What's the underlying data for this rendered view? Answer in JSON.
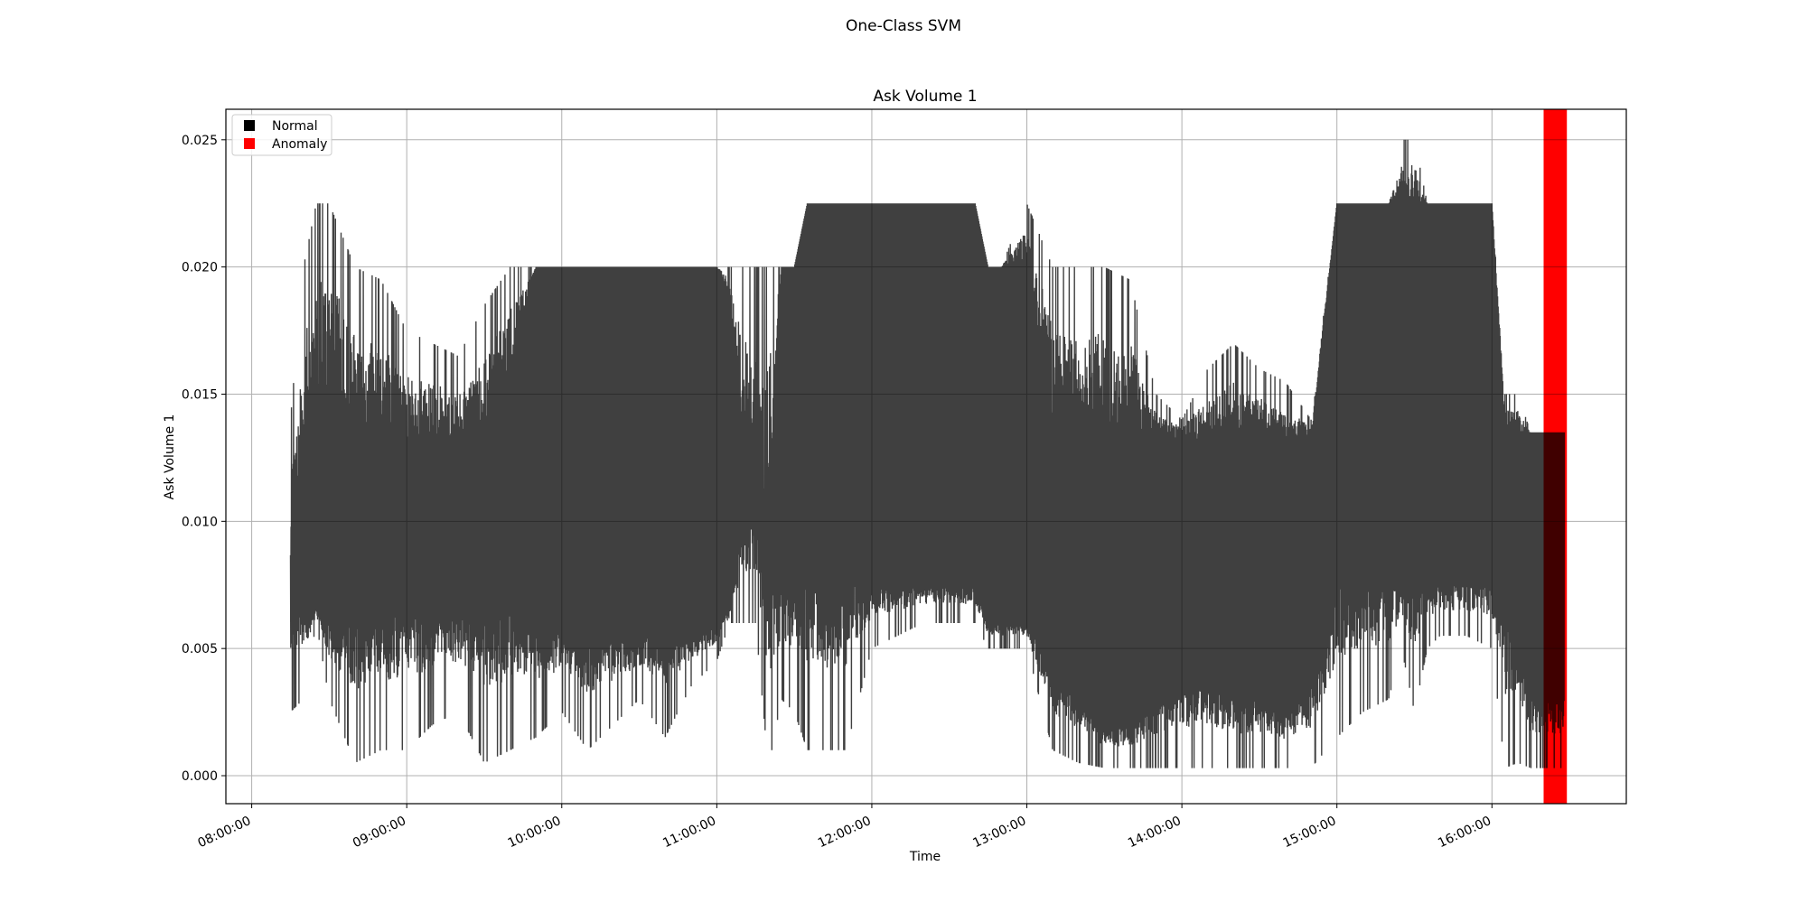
{
  "figure": {
    "suptitle": "One-Class SVM"
  },
  "chart_data": {
    "type": "line",
    "title": "Ask Volume 1",
    "xlabel": "Time",
    "ylabel": "Ask Volume 1",
    "x_range": [
      "07:50:00",
      "16:52:00"
    ],
    "ylim": [
      -0.0011,
      0.0262
    ],
    "xticks": [
      "08:00:00",
      "09:00:00",
      "10:00:00",
      "11:00:00",
      "12:00:00",
      "13:00:00",
      "14:00:00",
      "15:00:00",
      "16:00:00"
    ],
    "yticks": [
      "0.000",
      "0.005",
      "0.010",
      "0.015",
      "0.020",
      "0.025"
    ],
    "grid": true,
    "legend": {
      "placement": "top-left",
      "entries": [
        {
          "label": "Normal",
          "color": "#000000"
        },
        {
          "label": "Anomaly",
          "color": "#ff0000"
        }
      ]
    },
    "series_color": "#000000",
    "series_alpha": 0.75,
    "anomaly_color": "#ff0000",
    "anomaly_regions": [
      {
        "start": "16:20:00",
        "end": "16:29:00"
      }
    ],
    "envelope": {
      "description_free": true,
      "x": [
        "08:15:00",
        "08:20:00",
        "08:25:00",
        "08:30:00",
        "08:40:00",
        "08:50:00",
        "09:00:00",
        "09:10:00",
        "09:20:00",
        "09:30:00",
        "09:40:00",
        "09:50:00",
        "10:00:00",
        "10:10:00",
        "10:20:00",
        "10:30:00",
        "10:40:00",
        "10:50:00",
        "11:00:00",
        "11:05:00",
        "11:10:00",
        "11:15:00",
        "11:20:00",
        "11:25:00",
        "11:30:00",
        "11:35:00",
        "11:40:00",
        "11:50:00",
        "12:00:00",
        "12:10:00",
        "12:20:00",
        "12:30:00",
        "12:40:00",
        "12:45:00",
        "12:50:00",
        "13:00:00",
        "13:10:00",
        "13:20:00",
        "13:30:00",
        "13:40:00",
        "13:50:00",
        "14:00:00",
        "14:10:00",
        "14:20:00",
        "14:30:00",
        "14:40:00",
        "14:50:00",
        "15:00:00",
        "15:05:00",
        "15:10:00",
        "15:20:00",
        "15:25:00",
        "15:30:00",
        "15:35:00",
        "15:40:00",
        "15:50:00",
        "16:00:00",
        "16:05:00",
        "16:10:00",
        "16:15:00",
        "16:20:00",
        "16:25:00",
        "16:28:00"
      ],
      "upper": [
        0.014,
        0.02,
        0.0225,
        0.0225,
        0.02,
        0.0195,
        0.0175,
        0.017,
        0.0165,
        0.0185,
        0.02,
        0.02,
        0.02,
        0.02,
        0.02,
        0.02,
        0.02,
        0.02,
        0.02,
        0.02,
        0.02,
        0.02,
        0.02,
        0.02,
        0.02,
        0.0225,
        0.0225,
        0.0225,
        0.0225,
        0.0225,
        0.0225,
        0.0225,
        0.0225,
        0.02,
        0.02,
        0.0225,
        0.02,
        0.02,
        0.02,
        0.0195,
        0.015,
        0.014,
        0.016,
        0.017,
        0.016,
        0.0155,
        0.014,
        0.0225,
        0.0225,
        0.0225,
        0.0225,
        0.025,
        0.025,
        0.0225,
        0.0225,
        0.0225,
        0.0225,
        0.015,
        0.015,
        0.0135,
        0.0135,
        0.0135,
        0.0135
      ],
      "upper_core": [
        0.0075,
        0.013,
        0.015,
        0.015,
        0.014,
        0.0135,
        0.013,
        0.013,
        0.013,
        0.013,
        0.016,
        0.02,
        0.02,
        0.02,
        0.02,
        0.02,
        0.02,
        0.02,
        0.02,
        0.019,
        0.0135,
        0.011,
        0.01,
        0.02,
        0.02,
        0.0225,
        0.0225,
        0.0225,
        0.0225,
        0.0225,
        0.0225,
        0.0225,
        0.0225,
        0.02,
        0.02,
        0.02,
        0.014,
        0.0135,
        0.0135,
        0.0133,
        0.0132,
        0.0132,
        0.0132,
        0.0132,
        0.0132,
        0.0132,
        0.0132,
        0.0225,
        0.0225,
        0.0225,
        0.0225,
        0.0225,
        0.0225,
        0.0225,
        0.0225,
        0.0225,
        0.0225,
        0.0135,
        0.0135,
        0.0135,
        0.0135,
        0.0135,
        0.0135
      ],
      "lower_core": [
        0.0075,
        0.0065,
        0.0065,
        0.0062,
        0.0062,
        0.0062,
        0.0065,
        0.0065,
        0.0065,
        0.0065,
        0.0065,
        0.006,
        0.0055,
        0.0055,
        0.0055,
        0.0055,
        0.0055,
        0.0055,
        0.006,
        0.0065,
        0.01,
        0.01,
        0.0075,
        0.0075,
        0.0075,
        0.0075,
        0.0075,
        0.0075,
        0.0075,
        0.0075,
        0.0075,
        0.0075,
        0.0075,
        0.006,
        0.006,
        0.006,
        0.004,
        0.003,
        0.002,
        0.002,
        0.003,
        0.0035,
        0.0035,
        0.003,
        0.003,
        0.0025,
        0.0035,
        0.0075,
        0.0075,
        0.0075,
        0.0075,
        0.0075,
        0.0075,
        0.0075,
        0.0075,
        0.0075,
        0.0075,
        0.006,
        0.006,
        0.003,
        0.003,
        0.003,
        0.003
      ],
      "lower": [
        0.0025,
        0.003,
        0.006,
        0.003,
        0.0005,
        0.001,
        0.001,
        0.002,
        0.0025,
        0.0005,
        0.001,
        0.0015,
        0.0025,
        0.001,
        0.002,
        0.003,
        0.0015,
        0.0035,
        0.0045,
        0.006,
        0.006,
        0.006,
        0.0003,
        0.003,
        0.0025,
        0.001,
        0.001,
        0.001,
        0.005,
        0.0055,
        0.006,
        0.006,
        0.006,
        0.005,
        0.005,
        0.005,
        0.001,
        0.0005,
        0.0003,
        0.0003,
        0.0003,
        0.0003,
        0.0003,
        0.0003,
        0.0003,
        0.0003,
        0.0003,
        0.0015,
        0.002,
        0.0025,
        0.003,
        0.005,
        0.0025,
        0.005,
        0.0055,
        0.0055,
        0.005,
        0.0003,
        0.0005,
        0.0003,
        0.0003,
        0.0003,
        0.0003
      ]
    }
  }
}
